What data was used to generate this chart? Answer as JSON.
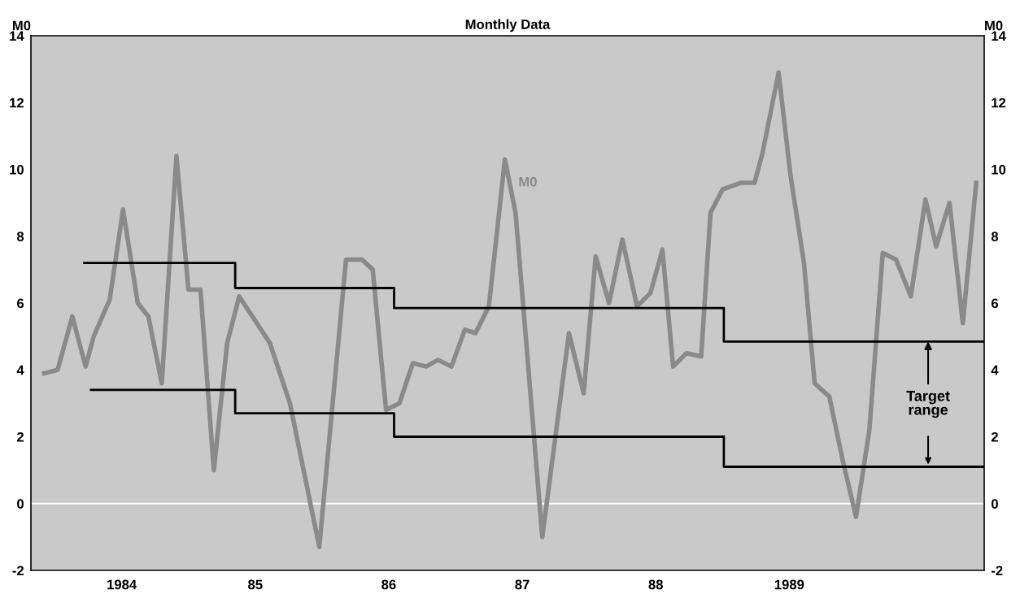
{
  "chart_data": {
    "type": "line",
    "title": "Monthly Data",
    "ylabel": "M0",
    "y2label": "M0",
    "xlim": [
      1983.32,
      1990.46
    ],
    "xticks": [
      {
        "value": 1984,
        "label": "1984"
      },
      {
        "value": 1985,
        "label": "85"
      },
      {
        "value": 1986,
        "label": "86"
      },
      {
        "value": 1987,
        "label": "87"
      },
      {
        "value": 1988,
        "label": "88"
      },
      {
        "value": 1989,
        "label": "1989"
      }
    ],
    "ylim": [
      -2,
      14
    ],
    "yticks": [
      -2,
      0,
      2,
      4,
      6,
      8,
      10,
      12,
      14
    ],
    "y2lim": [
      -2,
      14
    ],
    "y2ticks": [
      -2,
      0,
      2,
      4,
      6,
      8,
      10,
      12,
      14
    ],
    "grid": false,
    "legend": false,
    "ref_lines": [
      {
        "axis": "y",
        "value": 0,
        "color": "#ffffff"
      }
    ],
    "annotations": [
      {
        "text": "M0",
        "x": 1986.87,
        "y": 10.3
      },
      {
        "text": "Target range",
        "x": 1990.04,
        "y": 4.85
      }
    ],
    "series": [
      {
        "color": "#8a8a8a",
        "x": [
          1983.42,
          1983.52,
          1983.63,
          1983.73,
          1983.79,
          1983.91,
          1984.01,
          1984.12,
          1984.2,
          1984.3,
          1984.41,
          1984.5,
          1984.59,
          1984.69,
          1984.79,
          1984.88,
          1985.11,
          1985.26,
          1985.48,
          1985.68,
          1985.8,
          1985.88,
          1985.98,
          1986.08,
          1986.18,
          1986.28,
          1986.37,
          1986.47,
          1986.57,
          1986.65,
          1986.75,
          1986.87,
          1986.95,
          1987.15,
          1987.35,
          1987.46,
          1987.55,
          1987.65,
          1987.75,
          1987.86,
          1987.96,
          1988.05,
          1988.13,
          1988.23,
          1988.34,
          1988.41,
          1988.5,
          1988.64,
          1988.74,
          1988.8,
          1988.92,
          1989.01,
          1989.11,
          1989.19,
          1989.3,
          1989.4,
          1989.5,
          1989.6,
          1989.7,
          1989.8,
          1989.91,
          1990.02,
          1990.1,
          1990.2,
          1990.3,
          1990.4
        ],
        "values": [
          3.9,
          4.0,
          5.6,
          4.1,
          5.0,
          6.1,
          8.8,
          6.0,
          5.6,
          3.6,
          10.4,
          6.4,
          6.4,
          1.0,
          4.8,
          6.2,
          4.8,
          3.0,
          -1.3,
          7.3,
          7.3,
          7.0,
          2.8,
          3.0,
          4.2,
          4.1,
          4.3,
          4.1,
          5.2,
          5.1,
          5.9,
          10.3,
          8.7,
          -1.0,
          5.1,
          3.3,
          7.4,
          6.0,
          7.9,
          5.9,
          6.3,
          7.6,
          4.1,
          4.5,
          4.4,
          8.7,
          9.4,
          9.6,
          9.6,
          10.5,
          12.9,
          9.8,
          7.2,
          3.6,
          3.2,
          1.3,
          -0.4,
          2.2,
          7.5,
          7.3,
          6.2,
          9.1,
          7.7,
          9.0,
          5.4,
          9.6
        ]
      },
      {
        "type": "step",
        "color": "#000000",
        "x": [
          1983.72,
          1984.85,
          1986.04,
          1988.51,
          1990.46
        ],
        "values": [
          7.2,
          6.45,
          5.85,
          4.85,
          4.85
        ]
      },
      {
        "type": "step",
        "color": "#000000",
        "x": [
          1983.77,
          1984.85,
          1986.04,
          1988.51,
          1990.46
        ],
        "values": [
          3.4,
          2.7,
          2.0,
          1.1,
          1.1
        ]
      }
    ]
  }
}
